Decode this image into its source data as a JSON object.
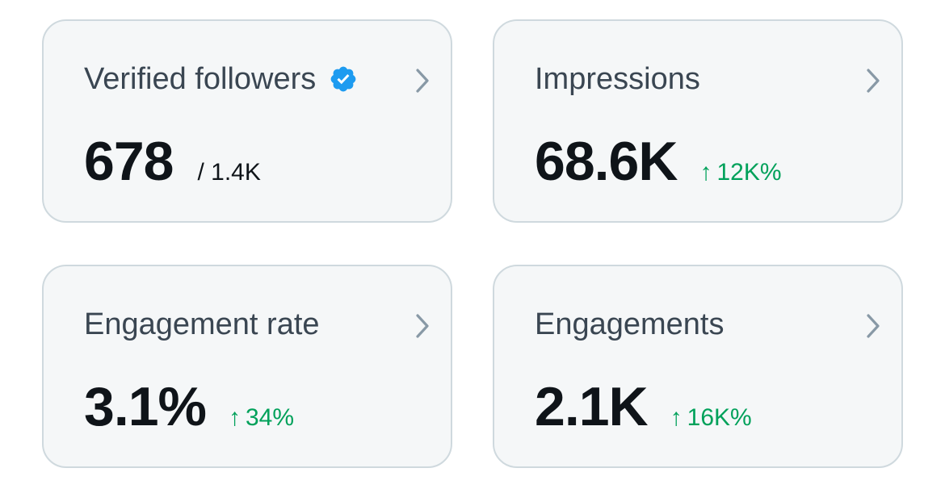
{
  "colors": {
    "card_background": "#f5f7f8",
    "card_border": "#cfd9de",
    "title_text": "#3a4652",
    "value_text": "#0f1419",
    "positive_change": "#00a15a",
    "verified_badge": "#1d9bf0",
    "chevron": "#8899a6"
  },
  "cards": [
    {
      "title": "Verified followers",
      "value": "678",
      "total": "/ 1.4K",
      "icon": "verified-badge-icon"
    },
    {
      "title": "Impressions",
      "value": "68.6K",
      "change_arrow": "↑",
      "change": "12K%"
    },
    {
      "title": "Engagement rate",
      "value": "3.1%",
      "change_arrow": "↑",
      "change": "34%"
    },
    {
      "title": "Engagements",
      "value": "2.1K",
      "change_arrow": "↑",
      "change": "16K%"
    }
  ],
  "chevron_icon": "chevron-right-icon"
}
